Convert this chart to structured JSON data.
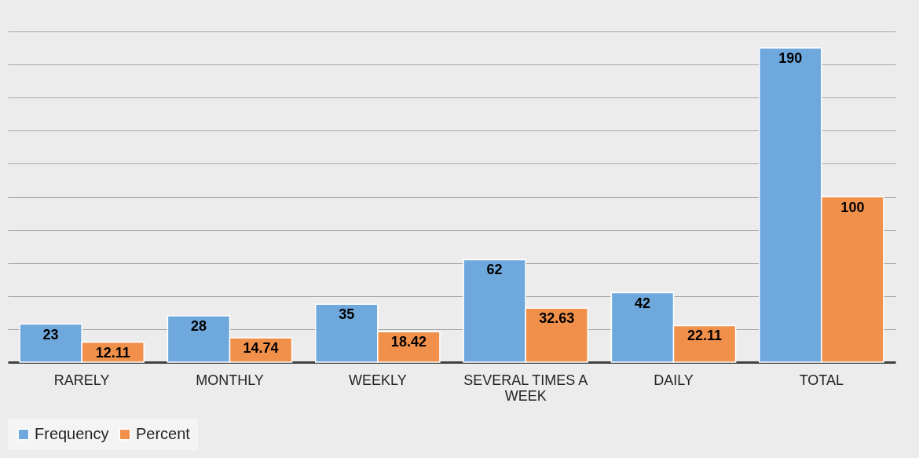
{
  "chart_data": {
    "type": "bar",
    "categories": [
      "RARELY",
      "MONTHLY",
      "WEEKLY",
      "SEVERAL TIMES A WEEK",
      "DAILY",
      "TOTAL"
    ],
    "series": [
      {
        "name": "Frequency",
        "color": "#6fa8dc",
        "values": [
          23,
          28,
          35,
          62,
          42,
          190
        ]
      },
      {
        "name": "Percent",
        "color": "#f0904a",
        "values": [
          12.11,
          14.74,
          18.42,
          32.63,
          22.11,
          100
        ]
      }
    ],
    "ylim": [
      0,
      200
    ],
    "yticks": [
      0,
      20,
      40,
      60,
      80,
      100,
      120,
      140,
      160,
      180,
      200
    ],
    "tick_labels": "x",
    "grid": "y",
    "legend": "bottom",
    "data_labels": true
  }
}
